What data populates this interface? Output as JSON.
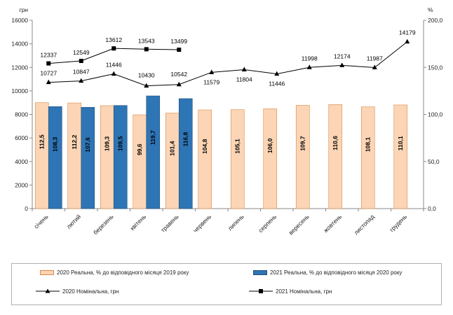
{
  "chart_data": {
    "type": "bar",
    "categories": [
      "січень",
      "лютий",
      "березень",
      "квітень",
      "травень",
      "червень",
      "липень",
      "серпень",
      "вересень",
      "жовтень",
      "листопад",
      "грудень"
    ],
    "left_axis": {
      "unit_label": "грн",
      "min": 0,
      "max": 16000,
      "step": 2000,
      "tick_labels": [
        "0",
        "2000",
        "4000",
        "6000",
        "8000",
        "10000",
        "12000",
        "14000",
        "16000"
      ]
    },
    "right_axis": {
      "unit_label": "%",
      "min": 0,
      "max": 200,
      "step": 50,
      "tick_labels": [
        "0,0",
        "50,0",
        "100,0",
        "150,0",
        "200,0"
      ]
    },
    "series": [
      {
        "name": "2020 Реальна, % до відповідного місяця 2019 року",
        "kind": "bar",
        "axis": "right",
        "color": "#fbd5b5",
        "stroke": "#d98a4b",
        "values": [
          112.5,
          112.2,
          109.3,
          99.6,
          101.4,
          104.8,
          105.1,
          106.0,
          109.7,
          110.6,
          108.1,
          110.1
        ],
        "labels": [
          "112,5",
          "112,2",
          "109,3",
          "99,6",
          "101,4",
          "104,8",
          "105,1",
          "106,0",
          "109,7",
          "110,6",
          "108,1",
          "110,1"
        ]
      },
      {
        "name": "2021 Реальна, % до відповідного місяця 2020 року",
        "kind": "bar",
        "axis": "right",
        "color": "#2e75b6",
        "stroke": "#1f4e79",
        "values": [
          108.3,
          107.6,
          109.5,
          119.7,
          116.8,
          null,
          null,
          null,
          null,
          null,
          null,
          null
        ],
        "labels": [
          "108,3",
          "107,6",
          "109,5",
          "119,7",
          "116,8",
          "",
          "",
          "",
          "",
          "",
          "",
          ""
        ]
      },
      {
        "name": "2020 Номінальна, грн",
        "kind": "line",
        "marker": "triangle",
        "axis": "left",
        "color": "#000000",
        "values": [
          10727,
          10847,
          11446,
          10430,
          10542,
          11579,
          11804,
          11446,
          11998,
          12174,
          11987,
          14179
        ],
        "labels": [
          "10727",
          "10847",
          "11446",
          "10430",
          "10542",
          "11579",
          "11804",
          "11446",
          "11998",
          "12174",
          "11987",
          "14179"
        ]
      },
      {
        "name": "2021 Номінальна, грн",
        "kind": "line",
        "marker": "square",
        "axis": "left",
        "color": "#000000",
        "values": [
          12337,
          12549,
          13612,
          13543,
          13499,
          null,
          null,
          null,
          null,
          null,
          null,
          null
        ],
        "labels": [
          "12337",
          "12549",
          "13612",
          "13543",
          "13499",
          "",
          "",
          "",
          "",
          "",
          "",
          ""
        ]
      }
    ],
    "grid": false,
    "legend_position": "bottom"
  }
}
